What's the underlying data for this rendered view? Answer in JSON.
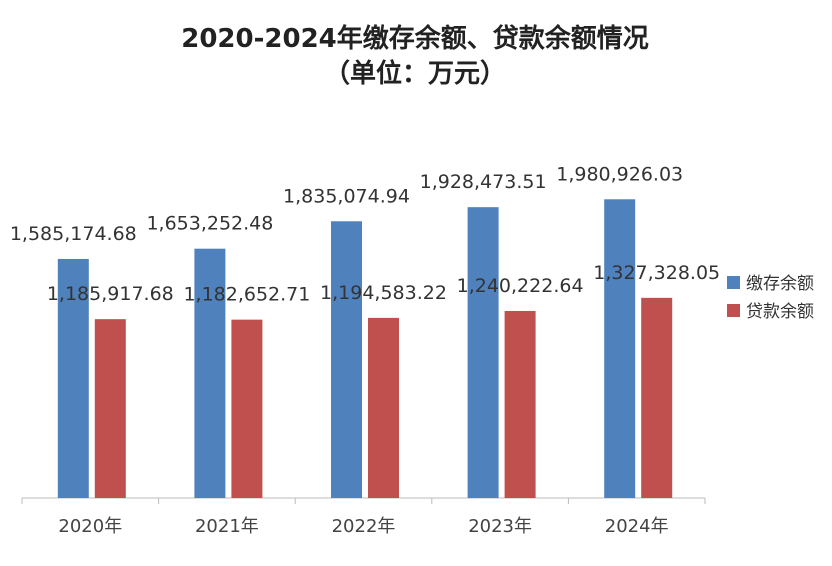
{
  "chart_data": {
    "type": "bar",
    "title_line1": "2020-2024年缴存余额、贷款余额情况",
    "title_line2": "（单位：万元）",
    "categories": [
      "2020年",
      "2021年",
      "2022年",
      "2023年",
      "2024年"
    ],
    "series": [
      {
        "name": "缴存余额",
        "color": "#4F81BD",
        "values": [
          1585174.68,
          1653252.48,
          1835074.94,
          1928473.51,
          1980926.03
        ]
      },
      {
        "name": "贷款余额",
        "color": "#C0504D",
        "values": [
          1185917.68,
          1182652.71,
          1194583.22,
          1240222.64,
          1327328.05
        ]
      }
    ],
    "data_labels": [
      [
        "1,585,174.68",
        "1,653,252.48",
        "1,835,074.94",
        "1,928,473.51",
        "1,980,926.03"
      ],
      [
        "1,185,917.68",
        "1,182,652.71",
        "1,194,583.22",
        "1,240,222.64",
        "1,327,328.05"
      ]
    ],
    "ylim": [
      0,
      2500000
    ],
    "grid": false,
    "legend": "right"
  }
}
